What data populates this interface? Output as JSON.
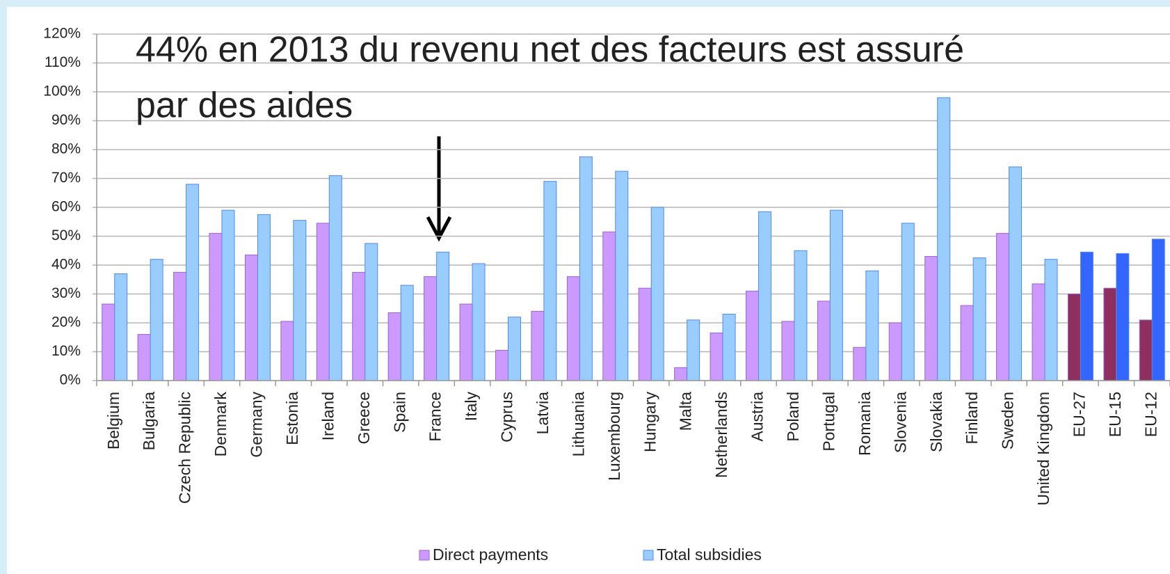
{
  "chart_data": {
    "type": "bar",
    "annotation": [
      "44% en 2013 du revenu net des facteurs est assuré",
      "par des aides"
    ],
    "categories": [
      "Belgium",
      "Bulgaria",
      "Czech Republic",
      "Denmark",
      "Germany",
      "Estonia",
      "Ireland",
      "Greece",
      "Spain",
      "France",
      "Italy",
      "Cyprus",
      "Latvia",
      "Lithuania",
      "Luxembourg",
      "Hungary",
      "Malta",
      "Netherlands",
      "Austria",
      "Poland",
      "Portugal",
      "Romania",
      "Slovenia",
      "Slovakia",
      "Finland",
      "Sweden",
      "United Kingdom",
      "EU-27",
      "EU-15",
      "EU-12"
    ],
    "series": [
      {
        "name": "Direct payments",
        "color": "#cc99ff",
        "point_colors": [
          null,
          null,
          null,
          null,
          null,
          null,
          null,
          null,
          null,
          null,
          null,
          null,
          null,
          null,
          null,
          null,
          null,
          null,
          null,
          null,
          null,
          null,
          null,
          null,
          null,
          null,
          null,
          "#8e2f60",
          "#8e2f60",
          "#8e2f60"
        ],
        "values": [
          26.5,
          16,
          37.5,
          51,
          43.5,
          20.5,
          54.5,
          37.5,
          23.5,
          36,
          26.5,
          10.5,
          24,
          36,
          51.5,
          32,
          4.5,
          16.5,
          31,
          20.5,
          27.5,
          11.5,
          20,
          43,
          26,
          51,
          33.5,
          30,
          32,
          21
        ]
      },
      {
        "name": "Total subsidies",
        "color": "#99ccff",
        "point_colors": [
          null,
          null,
          null,
          null,
          null,
          null,
          null,
          null,
          null,
          null,
          null,
          null,
          null,
          null,
          null,
          null,
          null,
          null,
          null,
          null,
          null,
          null,
          null,
          null,
          null,
          null,
          null,
          "#3366ff",
          "#3366ff",
          "#3366ff"
        ],
        "values": [
          37,
          42,
          68,
          59,
          57.5,
          55.5,
          71,
          47.5,
          33,
          44.5,
          40.5,
          22,
          69,
          77.5,
          72.5,
          60,
          21,
          23,
          58.5,
          45,
          59,
          38,
          54.5,
          98,
          42.5,
          74,
          42,
          44.5,
          44,
          49
        ]
      }
    ],
    "ylim": [
      0,
      120
    ],
    "yticks": [
      {
        "value": 0,
        "label": "0%"
      },
      {
        "value": 10,
        "label": "10%"
      },
      {
        "value": 20,
        "label": "20%"
      },
      {
        "value": 30,
        "label": "30%"
      },
      {
        "value": 40,
        "label": "40%"
      },
      {
        "value": 50,
        "label": "50%"
      },
      {
        "value": 60,
        "label": "60%"
      },
      {
        "value": 70,
        "label": "70%"
      },
      {
        "value": 80,
        "label": "80%"
      },
      {
        "value": 90,
        "label": "90%"
      },
      {
        "value": 100,
        "label": "100%"
      },
      {
        "value": 110,
        "label": "110%"
      },
      {
        "value": 120,
        "label": "120%"
      }
    ],
    "grid": true
  }
}
